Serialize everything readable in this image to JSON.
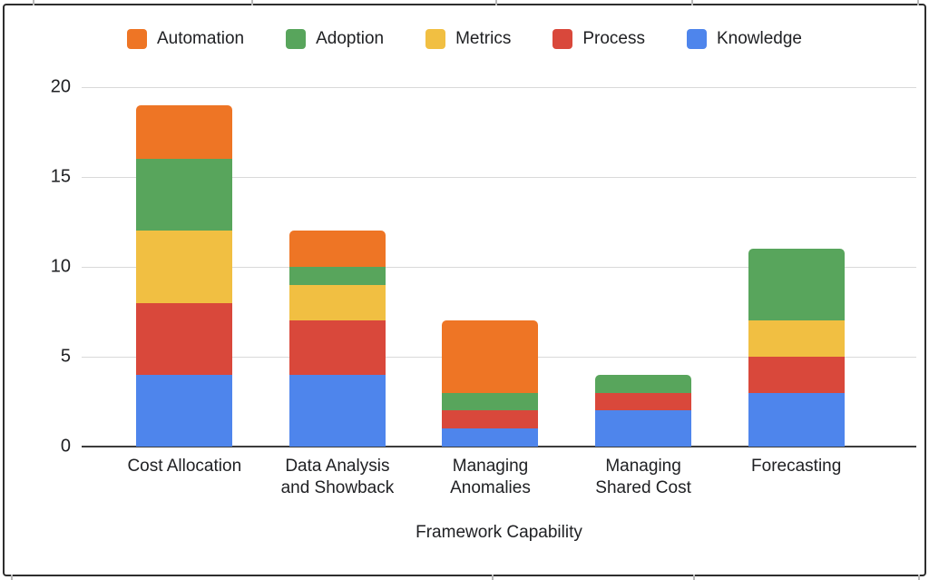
{
  "chart_data": {
    "type": "bar",
    "stacked": true,
    "title": "",
    "xlabel": "Framework Capability",
    "ylabel": "",
    "ylim": [
      0,
      20
    ],
    "yticks": [
      0,
      5,
      10,
      15,
      20
    ],
    "grid": true,
    "legend_position": "top",
    "categories": [
      "Cost Allocation",
      "Data Analysis and Showback",
      "Managing Anomalies",
      "Managing Shared Cost",
      "Forecasting"
    ],
    "xtick_label_lines": [
      [
        "Cost Allocation"
      ],
      [
        "Data Analysis",
        "and Showback"
      ],
      [
        "Managing",
        "Anomalies"
      ],
      [
        "Managing",
        "Shared Cost"
      ],
      [
        "Forecasting"
      ]
    ],
    "series": [
      {
        "name": "Knowledge",
        "color": "#4e85ec",
        "values": [
          4,
          4,
          1,
          2,
          3
        ]
      },
      {
        "name": "Process",
        "color": "#d9483b",
        "values": [
          4,
          3,
          1,
          1,
          2
        ]
      },
      {
        "name": "Metrics",
        "color": "#f1bf42",
        "values": [
          4,
          2,
          0,
          0,
          2
        ]
      },
      {
        "name": "Adoption",
        "color": "#58a55c",
        "values": [
          4,
          1,
          1,
          1,
          4
        ]
      },
      {
        "name": "Automation",
        "color": "#ee7525",
        "values": [
          3,
          2,
          4,
          0,
          0
        ]
      }
    ],
    "legend": [
      {
        "name": "Automation",
        "color": "#ee7525"
      },
      {
        "name": "Adoption",
        "color": "#58a55c"
      },
      {
        "name": "Metrics",
        "color": "#f1bf42"
      },
      {
        "name": "Process",
        "color": "#d9483b"
      },
      {
        "name": "Knowledge",
        "color": "#4e85ec"
      }
    ],
    "colors": {
      "gridline": "#d9d9d9",
      "axis_line": "#3c3c3c",
      "text": "#202124"
    }
  }
}
